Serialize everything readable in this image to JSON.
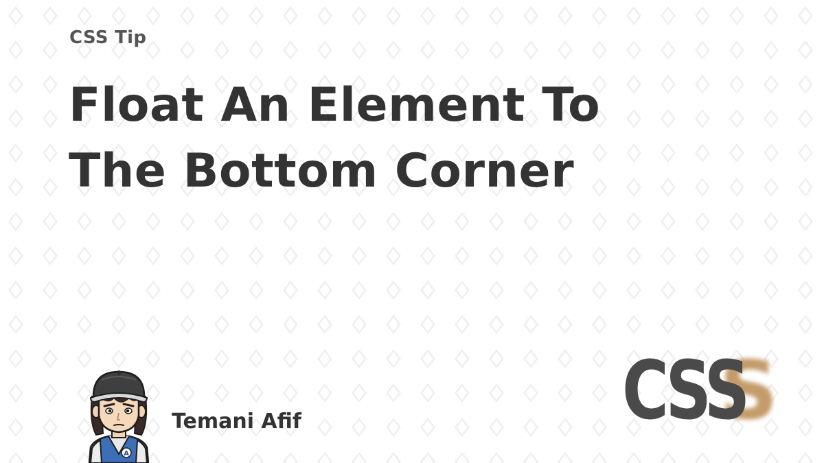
{
  "card": {
    "eyebrow": "CSS Tip",
    "title_lines": [
      "Float An Element To",
      "The Bottom Corner"
    ]
  },
  "author": {
    "name": "Temani Afif",
    "avatar_badge": "A"
  },
  "logo": {
    "text": "CSS"
  },
  "colors": {
    "background": "#ffffff",
    "pattern": "#f1f1f1",
    "text_dark": "#333333",
    "text_muted": "#555555",
    "logo_dark": "#4a4a4a",
    "logo_accent": "#c49b6a"
  },
  "icons": {
    "avatar": "cartoon-avatar-icon",
    "logo": "css-logo-icon"
  }
}
